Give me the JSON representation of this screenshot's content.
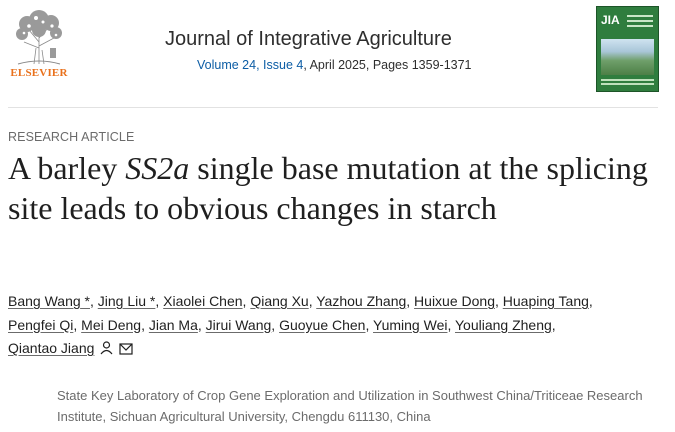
{
  "publisher": {
    "name": "ELSEVIER"
  },
  "journal": {
    "title": "Journal of Integrative Agriculture",
    "volume_issue_link": "Volume 24, Issue 4",
    "date_pages": ", April 2025, Pages 1359-1371",
    "cover_label": "JIA"
  },
  "article": {
    "type": "RESEARCH ARTICLE",
    "title_part1": "A barley ",
    "title_gene": "SS2a",
    "title_part2": " single base mutation at the splicing site leads to obvious changes in starch"
  },
  "authors": [
    {
      "name": "Bang Wang",
      "mark": " *"
    },
    {
      "name": "Jing Liu",
      "mark": " *"
    },
    {
      "name": "Xiaolei Chen",
      "mark": ""
    },
    {
      "name": "Qiang Xu",
      "mark": ""
    },
    {
      "name": "Yazhou Zhang",
      "mark": ""
    },
    {
      "name": "Huixue Dong",
      "mark": ""
    },
    {
      "name": "Huaping Tang",
      "mark": ""
    },
    {
      "name": "Pengfei Qi",
      "mark": ""
    },
    {
      "name": "Mei Deng",
      "mark": ""
    },
    {
      "name": "Jian Ma",
      "mark": ""
    },
    {
      "name": "Jirui Wang",
      "mark": ""
    },
    {
      "name": "Guoyue Chen",
      "mark": ""
    },
    {
      "name": "Yuming Wei",
      "mark": ""
    },
    {
      "name": "Youliang Zheng",
      "mark": ""
    },
    {
      "name": "Qiantao Jiang",
      "mark": ""
    }
  ],
  "corresponding_icons": [
    "person-icon",
    "envelope-icon"
  ],
  "affiliation": "State Key Laboratory of Crop Gene Exploration and Utilization in Southwest China/Triticeae Research Institute, Sichuan Agricultural University, Chengdu 611130, China",
  "colors": {
    "elsevier_orange": "#e9711c",
    "link_blue": "#0c5da5",
    "cover_green": "#2f7d3e",
    "muted_text": "#6b6b6b"
  }
}
